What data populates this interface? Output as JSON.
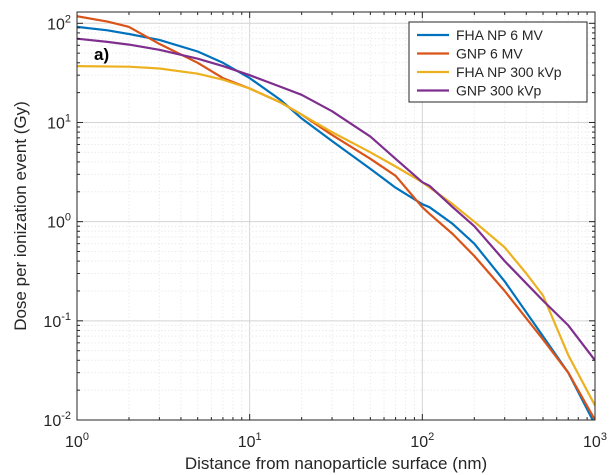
{
  "chart_data": {
    "type": "line",
    "title": "",
    "xlabel": "Distance from nanoparticle surface (nm)",
    "ylabel": "Dose per ionization event (Gy)",
    "panel_label": "a)",
    "xscale": "log",
    "yscale": "log",
    "xlim": [
      1,
      1000
    ],
    "ylim": [
      0.01,
      130
    ],
    "grid": true,
    "legend_position": "top-right",
    "xticks": [
      {
        "value": 1,
        "base": "10",
        "exp": "0"
      },
      {
        "value": 10,
        "base": "10",
        "exp": "1"
      },
      {
        "value": 100,
        "base": "10",
        "exp": "2"
      },
      {
        "value": 1000,
        "base": "10",
        "exp": "3"
      }
    ],
    "yticks": [
      {
        "value": 0.01,
        "base": "10",
        "exp": "-2"
      },
      {
        "value": 0.1,
        "base": "10",
        "exp": "-1"
      },
      {
        "value": 1,
        "base": "10",
        "exp": "0"
      },
      {
        "value": 10,
        "base": "10",
        "exp": "1"
      },
      {
        "value": 100,
        "base": "10",
        "exp": "2"
      }
    ],
    "series": [
      {
        "name": "FHA NP 6 MV",
        "color": "#0072BD",
        "x": [
          1,
          1.5,
          2,
          3,
          5,
          7,
          10,
          15,
          20,
          30,
          50,
          70,
          100,
          110,
          150,
          200,
          300,
          500,
          700,
          1000
        ],
        "y": [
          92,
          85,
          78,
          68,
          52,
          40,
          28,
          17,
          11,
          6.5,
          3.4,
          2.2,
          1.5,
          1.4,
          0.95,
          0.6,
          0.25,
          0.07,
          0.03,
          0.009
        ]
      },
      {
        "name": "GNP 6 MV",
        "color": "#D95319",
        "x": [
          1,
          1.5,
          2,
          3,
          5,
          7,
          10,
          15,
          20,
          30,
          50,
          70,
          100,
          110,
          150,
          200,
          300,
          500,
          700,
          1000
        ],
        "y": [
          118,
          104,
          92,
          62,
          40,
          28,
          22,
          16,
          12,
          7.5,
          4.3,
          2.9,
          1.4,
          1.2,
          0.75,
          0.45,
          0.2,
          0.065,
          0.03,
          0.01
        ]
      },
      {
        "name": "FHA NP 300 kVp",
        "color": "#EDB120",
        "x": [
          1,
          2,
          3,
          5,
          7,
          10,
          15,
          20,
          30,
          50,
          70,
          100,
          150,
          200,
          300,
          400,
          500,
          700,
          1000
        ],
        "y": [
          37,
          36.5,
          35,
          31,
          27,
          22,
          16,
          12,
          8,
          5,
          3.6,
          2.5,
          1.5,
          1.0,
          0.55,
          0.3,
          0.18,
          0.045,
          0.014
        ]
      },
      {
        "name": "GNP 300 kVp",
        "color": "#7E2F8E",
        "x": [
          1,
          1.5,
          2,
          3,
          5,
          7,
          10,
          15,
          20,
          30,
          50,
          70,
          100,
          110,
          150,
          200,
          300,
          500,
          700,
          1000
        ],
        "y": [
          70,
          65,
          61,
          54,
          44,
          37,
          30,
          23,
          19,
          13,
          7.2,
          4.3,
          2.5,
          2.3,
          1.4,
          0.9,
          0.4,
          0.16,
          0.09,
          0.04
        ]
      }
    ]
  }
}
